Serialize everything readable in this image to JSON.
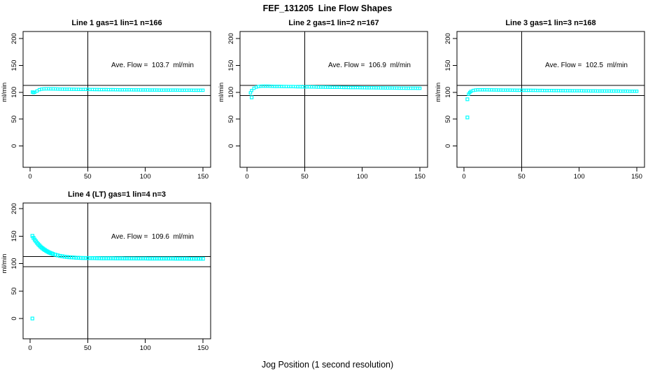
{
  "figure": {
    "title": "FEF_131205  Line Flow Shapes",
    "xlabel": "Jog Position (1 second resolution)",
    "ylabel": "ml/min",
    "colors": {
      "points": "#00FFFF",
      "axis": "#000000",
      "background": "#FFFFFF"
    }
  },
  "chart_data": [
    {
      "type": "scatter",
      "title": "Line 1 gas=1 lin=1 n=166",
      "annotation": "Ave. Flow =  103.7  ml/min",
      "ave_flow_ml_min": 103.7,
      "n": 166,
      "xlim": [
        0,
        155
      ],
      "ylim": [
        0,
        200
      ],
      "x_ticks": [
        0,
        50,
        100,
        150
      ],
      "y_ticks": [
        0,
        50,
        100,
        150,
        200
      ],
      "vline_x": 50,
      "hlines_y": [
        113,
        94
      ],
      "outliers": [],
      "points": [
        [
          2,
          100.4
        ],
        [
          3,
          99.3
        ],
        [
          4,
          100.1
        ],
        [
          6,
          102.4
        ],
        [
          8,
          104.8
        ],
        [
          10,
          105.9
        ],
        [
          12,
          106.3
        ],
        [
          14,
          106.4
        ],
        [
          16,
          106.4
        ],
        [
          18,
          106.3
        ],
        [
          20,
          106.2
        ],
        [
          22,
          106.1
        ],
        [
          24,
          106.0
        ],
        [
          26,
          105.9
        ],
        [
          28,
          105.9
        ],
        [
          30,
          105.8
        ],
        [
          32,
          105.7
        ],
        [
          34,
          105.7
        ],
        [
          36,
          105.6
        ],
        [
          38,
          105.6
        ],
        [
          40,
          105.5
        ],
        [
          42,
          105.5
        ],
        [
          44,
          105.4
        ],
        [
          46,
          105.4
        ],
        [
          48,
          105.3
        ],
        [
          50,
          105.3
        ],
        [
          52,
          105.2
        ],
        [
          54,
          105.2
        ],
        [
          56,
          105.1
        ],
        [
          58,
          105.1
        ],
        [
          60,
          105.0
        ],
        [
          62,
          105.0
        ],
        [
          64,
          104.9
        ],
        [
          66,
          104.9
        ],
        [
          68,
          104.8
        ],
        [
          70,
          104.8
        ],
        [
          72,
          104.8
        ],
        [
          74,
          104.7
        ],
        [
          76,
          104.7
        ],
        [
          78,
          104.6
        ],
        [
          80,
          104.6
        ],
        [
          82,
          104.6
        ],
        [
          84,
          104.5
        ],
        [
          86,
          104.5
        ],
        [
          88,
          104.5
        ],
        [
          90,
          104.4
        ],
        [
          92,
          104.4
        ],
        [
          94,
          104.4
        ],
        [
          96,
          104.3
        ],
        [
          98,
          104.3
        ],
        [
          100,
          104.3
        ],
        [
          102,
          104.3
        ],
        [
          104,
          104.2
        ],
        [
          106,
          104.2
        ],
        [
          108,
          104.2
        ],
        [
          110,
          104.2
        ],
        [
          112,
          104.1
        ],
        [
          114,
          104.1
        ],
        [
          116,
          104.1
        ],
        [
          118,
          104.1
        ],
        [
          120,
          104.0
        ],
        [
          122,
          104.0
        ],
        [
          124,
          104.0
        ],
        [
          126,
          104.0
        ],
        [
          128,
          104.0
        ],
        [
          130,
          103.9
        ],
        [
          132,
          103.9
        ],
        [
          134,
          103.9
        ],
        [
          136,
          103.9
        ],
        [
          138,
          103.9
        ],
        [
          140,
          103.9
        ],
        [
          142,
          103.8
        ],
        [
          144,
          103.8
        ],
        [
          146,
          103.8
        ],
        [
          148,
          103.8
        ],
        [
          150,
          103.8
        ]
      ]
    },
    {
      "type": "scatter",
      "title": "Line 2 gas=1 lin=2 n=167",
      "annotation": "Ave. Flow =  106.9  ml/min",
      "ave_flow_ml_min": 106.9,
      "n": 167,
      "xlim": [
        0,
        155
      ],
      "ylim": [
        0,
        200
      ],
      "x_ticks": [
        0,
        50,
        100,
        150
      ],
      "y_ticks": [
        0,
        50,
        100,
        150,
        200
      ],
      "vline_x": 50,
      "hlines_y": [
        113,
        94
      ],
      "outliers": [
        [
          4,
          90.5
        ]
      ],
      "points": [
        [
          3,
          99.0
        ],
        [
          4,
          103.2
        ],
        [
          6,
          107.4
        ],
        [
          8,
          109.6
        ],
        [
          10,
          110.7
        ],
        [
          12,
          111.2
        ],
        [
          14,
          111.4
        ],
        [
          16,
          111.4
        ],
        [
          18,
          111.3
        ],
        [
          20,
          111.2
        ],
        [
          22,
          111.1
        ],
        [
          24,
          111.0
        ],
        [
          26,
          110.9
        ],
        [
          28,
          110.9
        ],
        [
          30,
          110.8
        ],
        [
          32,
          110.7
        ],
        [
          34,
          110.7
        ],
        [
          36,
          110.6
        ],
        [
          38,
          110.5
        ],
        [
          40,
          110.5
        ],
        [
          42,
          110.4
        ],
        [
          44,
          110.3
        ],
        [
          46,
          110.3
        ],
        [
          48,
          110.2
        ],
        [
          50,
          110.1
        ],
        [
          52,
          110.1
        ],
        [
          54,
          110.0
        ],
        [
          56,
          109.9
        ],
        [
          58,
          109.9
        ],
        [
          60,
          109.8
        ],
        [
          62,
          109.7
        ],
        [
          64,
          109.7
        ],
        [
          66,
          109.6
        ],
        [
          68,
          109.5
        ],
        [
          70,
          109.5
        ],
        [
          72,
          109.4
        ],
        [
          74,
          109.3
        ],
        [
          76,
          109.3
        ],
        [
          78,
          109.2
        ],
        [
          80,
          109.2
        ],
        [
          82,
          109.1
        ],
        [
          84,
          109.0
        ],
        [
          86,
          109.0
        ],
        [
          88,
          108.9
        ],
        [
          90,
          108.8
        ],
        [
          92,
          108.8
        ],
        [
          94,
          108.7
        ],
        [
          96,
          108.7
        ],
        [
          98,
          108.6
        ],
        [
          100,
          108.5
        ],
        [
          102,
          108.5
        ],
        [
          104,
          108.4
        ],
        [
          106,
          108.4
        ],
        [
          108,
          108.3
        ],
        [
          110,
          108.3
        ],
        [
          112,
          108.2
        ],
        [
          114,
          108.2
        ],
        [
          116,
          108.1
        ],
        [
          118,
          108.1
        ],
        [
          120,
          108.0
        ],
        [
          122,
          108.0
        ],
        [
          124,
          107.9
        ],
        [
          126,
          107.9
        ],
        [
          128,
          107.8
        ],
        [
          130,
          107.8
        ],
        [
          132,
          107.7
        ],
        [
          134,
          107.7
        ],
        [
          136,
          107.7
        ],
        [
          138,
          107.6
        ],
        [
          140,
          107.6
        ],
        [
          142,
          107.5
        ],
        [
          144,
          107.5
        ],
        [
          146,
          107.5
        ],
        [
          148,
          107.4
        ],
        [
          150,
          107.4
        ]
      ]
    },
    {
      "type": "scatter",
      "title": "Line 3 gas=1 lin=3 n=168",
      "annotation": "Ave. Flow =  102.5  ml/min",
      "ave_flow_ml_min": 102.5,
      "n": 168,
      "xlim": [
        0,
        155
      ],
      "ylim": [
        0,
        200
      ],
      "x_ticks": [
        0,
        50,
        100,
        150
      ],
      "y_ticks": [
        0,
        50,
        100,
        150,
        200
      ],
      "vline_x": 50,
      "hlines_y": [
        113,
        94
      ],
      "outliers": [
        [
          3,
          53
        ],
        [
          3,
          87
        ]
      ],
      "points": [
        [
          4,
          96.5
        ],
        [
          5,
          99.5
        ],
        [
          6,
          101.6
        ],
        [
          8,
          103.4
        ],
        [
          10,
          104.2
        ],
        [
          12,
          104.5
        ],
        [
          14,
          104.6
        ],
        [
          16,
          104.6
        ],
        [
          18,
          104.5
        ],
        [
          20,
          104.5
        ],
        [
          22,
          104.4
        ],
        [
          24,
          104.4
        ],
        [
          26,
          104.3
        ],
        [
          28,
          104.3
        ],
        [
          30,
          104.2
        ],
        [
          32,
          104.2
        ],
        [
          34,
          104.1
        ],
        [
          36,
          104.1
        ],
        [
          38,
          104.0
        ],
        [
          40,
          104.0
        ],
        [
          42,
          103.9
        ],
        [
          44,
          103.9
        ],
        [
          46,
          103.8
        ],
        [
          48,
          103.8
        ],
        [
          50,
          103.8
        ],
        [
          52,
          103.7
        ],
        [
          54,
          103.7
        ],
        [
          56,
          103.6
        ],
        [
          58,
          103.6
        ],
        [
          60,
          103.5
        ],
        [
          62,
          103.5
        ],
        [
          64,
          103.4
        ],
        [
          66,
          103.4
        ],
        [
          68,
          103.4
        ],
        [
          70,
          103.3
        ],
        [
          72,
          103.3
        ],
        [
          74,
          103.2
        ],
        [
          76,
          103.2
        ],
        [
          78,
          103.1
        ],
        [
          80,
          103.1
        ],
        [
          82,
          103.1
        ],
        [
          84,
          103.0
        ],
        [
          86,
          103.0
        ],
        [
          88,
          102.9
        ],
        [
          90,
          102.9
        ],
        [
          92,
          102.9
        ],
        [
          94,
          102.8
        ],
        [
          96,
          102.8
        ],
        [
          98,
          102.7
        ],
        [
          100,
          102.7
        ],
        [
          102,
          102.7
        ],
        [
          104,
          102.6
        ],
        [
          106,
          102.6
        ],
        [
          108,
          102.6
        ],
        [
          110,
          102.5
        ],
        [
          112,
          102.5
        ],
        [
          114,
          102.5
        ],
        [
          116,
          102.4
        ],
        [
          118,
          102.4
        ],
        [
          120,
          102.4
        ],
        [
          122,
          102.3
        ],
        [
          124,
          102.3
        ],
        [
          126,
          102.3
        ],
        [
          128,
          102.2
        ],
        [
          130,
          102.2
        ],
        [
          132,
          102.2
        ],
        [
          134,
          102.2
        ],
        [
          136,
          102.1
        ],
        [
          138,
          102.1
        ],
        [
          140,
          102.1
        ],
        [
          142,
          102.1
        ],
        [
          144,
          102.0
        ],
        [
          146,
          102.0
        ],
        [
          148,
          102.0
        ],
        [
          150,
          102.0
        ]
      ]
    },
    {
      "type": "scatter",
      "title": "Line 4 (LT) gas=1 lin=4 n=3",
      "annotation": "Ave. Flow =  109.6  ml/min",
      "ave_flow_ml_min": 109.6,
      "n": 3,
      "xlim": [
        0,
        155
      ],
      "ylim": [
        0,
        200
      ],
      "x_ticks": [
        0,
        50,
        100,
        150
      ],
      "y_ticks": [
        0,
        50,
        100,
        150,
        200
      ],
      "vline_x": 50,
      "hlines_y": [
        113,
        94
      ],
      "outliers": [
        [
          2,
          0
        ]
      ],
      "points": [
        [
          2,
          150.3
        ],
        [
          3,
          146.8
        ],
        [
          4,
          143.5
        ],
        [
          5,
          140.5
        ],
        [
          6,
          137.8
        ],
        [
          7,
          135.3
        ],
        [
          8,
          133.1
        ],
        [
          9,
          131.0
        ],
        [
          10,
          129.1
        ],
        [
          11,
          127.4
        ],
        [
          12,
          125.8
        ],
        [
          13,
          124.4
        ],
        [
          14,
          123.1
        ],
        [
          15,
          121.9
        ],
        [
          16,
          120.8
        ],
        [
          17,
          119.8
        ],
        [
          18,
          118.9
        ],
        [
          19,
          118.1
        ],
        [
          20,
          117.3
        ],
        [
          22,
          116.0
        ],
        [
          24,
          114.9
        ],
        [
          26,
          113.9
        ],
        [
          28,
          113.2
        ],
        [
          30,
          112.5
        ],
        [
          32,
          112.0
        ],
        [
          34,
          111.5
        ],
        [
          36,
          111.2
        ],
        [
          38,
          110.9
        ],
        [
          40,
          110.6
        ],
        [
          42,
          110.4
        ],
        [
          44,
          110.2
        ],
        [
          46,
          110.1
        ],
        [
          48,
          110.0
        ],
        [
          50,
          109.9
        ],
        [
          52,
          109.9
        ],
        [
          54,
          109.8
        ],
        [
          56,
          109.8
        ],
        [
          58,
          109.7
        ],
        [
          60,
          109.7
        ],
        [
          62,
          109.6
        ],
        [
          64,
          109.6
        ],
        [
          66,
          109.6
        ],
        [
          68,
          109.5
        ],
        [
          70,
          109.5
        ],
        [
          72,
          109.5
        ],
        [
          74,
          109.4
        ],
        [
          76,
          109.4
        ],
        [
          78,
          109.4
        ],
        [
          80,
          109.4
        ],
        [
          82,
          109.3
        ],
        [
          84,
          109.3
        ],
        [
          86,
          109.3
        ],
        [
          88,
          109.3
        ],
        [
          90,
          109.3
        ],
        [
          92,
          109.2
        ],
        [
          94,
          109.2
        ],
        [
          96,
          109.2
        ],
        [
          98,
          109.2
        ],
        [
          100,
          109.2
        ],
        [
          102,
          109.1
        ],
        [
          104,
          109.1
        ],
        [
          106,
          109.1
        ],
        [
          108,
          109.1
        ],
        [
          110,
          109.1
        ],
        [
          112,
          109.1
        ],
        [
          114,
          109.0
        ],
        [
          116,
          109.0
        ],
        [
          118,
          109.0
        ],
        [
          120,
          109.0
        ],
        [
          122,
          109.0
        ],
        [
          124,
          109.0
        ],
        [
          126,
          108.9
        ],
        [
          128,
          108.9
        ],
        [
          130,
          108.9
        ],
        [
          132,
          108.9
        ],
        [
          134,
          108.9
        ],
        [
          136,
          108.9
        ],
        [
          138,
          108.8
        ],
        [
          140,
          108.8
        ],
        [
          142,
          108.8
        ],
        [
          144,
          108.8
        ],
        [
          146,
          108.8
        ],
        [
          148,
          108.8
        ],
        [
          150,
          108.8
        ]
      ]
    }
  ]
}
